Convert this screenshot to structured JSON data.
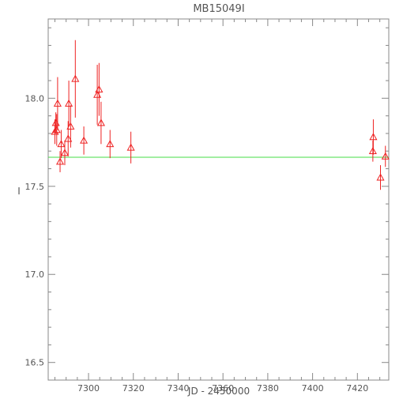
{
  "chart_data": {
    "type": "scatter",
    "title": "MB15049I",
    "xlabel": "JD - 2450000",
    "ylabel": "I",
    "xlim": [
      7282,
      7434
    ],
    "ylim": [
      18.45,
      16.4
    ],
    "y_inverted": true,
    "xticks": [
      7300,
      7320,
      7340,
      7360,
      7380,
      7400,
      7420
    ],
    "yticks": [
      16.5,
      17.0,
      17.5,
      18.0
    ],
    "ytick_labels": [
      "16.5",
      "17.0",
      "17.5",
      "18.0"
    ],
    "grid": false,
    "marker": "open-triangle",
    "colors": {
      "points": "#ee2222",
      "reference_line": "#44dd44",
      "axes": "#888888"
    },
    "reference_line": {
      "y": 17.665
    },
    "series": [
      {
        "points": [
          {
            "x": 7285.0,
            "y": 17.81,
            "err": 0.07
          },
          {
            "x": 7285.4,
            "y": 17.86,
            "err": 0.06
          },
          {
            "x": 7285.8,
            "y": 17.82,
            "err": 0.09
          },
          {
            "x": 7286.2,
            "y": 17.97,
            "err": 0.15
          },
          {
            "x": 7287.3,
            "y": 17.64,
            "err": 0.06
          },
          {
            "x": 7287.8,
            "y": 17.74,
            "err": 0.08
          },
          {
            "x": 7289.4,
            "y": 17.69,
            "err": 0.07
          },
          {
            "x": 7290.9,
            "y": 17.77,
            "err": 0.1
          },
          {
            "x": 7291.2,
            "y": 17.97,
            "err": 0.13
          },
          {
            "x": 7292.0,
            "y": 17.84,
            "err": 0.12
          },
          {
            "x": 7294.1,
            "y": 18.11,
            "err": 0.22
          },
          {
            "x": 7297.9,
            "y": 17.76,
            "err": 0.08
          },
          {
            "x": 7303.9,
            "y": 18.02,
            "err": 0.17
          },
          {
            "x": 7304.7,
            "y": 18.05,
            "err": 0.15
          },
          {
            "x": 7305.6,
            "y": 17.86,
            "err": 0.12
          },
          {
            "x": 7309.6,
            "y": 17.74,
            "err": 0.08
          },
          {
            "x": 7318.9,
            "y": 17.72,
            "err": 0.09
          },
          {
            "x": 7426.9,
            "y": 17.7,
            "err": 0.06
          },
          {
            "x": 7427.1,
            "y": 17.78,
            "err": 0.1
          },
          {
            "x": 7430.3,
            "y": 17.55,
            "err": 0.07
          },
          {
            "x": 7432.5,
            "y": 17.67,
            "err": 0.06
          }
        ]
      }
    ]
  }
}
